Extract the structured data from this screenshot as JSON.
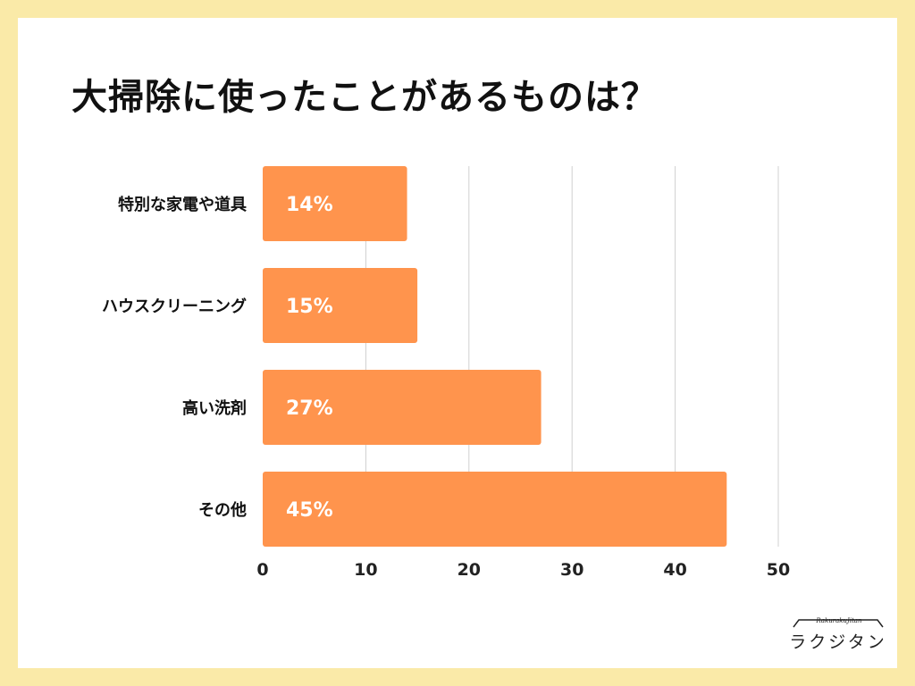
{
  "title": "大掃除に使ったことがあるものは？",
  "colors": {
    "bar": "#ff944d",
    "grid": "#d0d0d0",
    "background": "#faeaa8",
    "card": "#ffffff"
  },
  "logo": {
    "script": "RakurakuJitan",
    "kana": "ラクジタン"
  },
  "chart_data": {
    "type": "bar",
    "orientation": "horizontal",
    "categories": [
      "特別な家電や道具",
      "ハウスクリーニング",
      "高い洗剤",
      "その他"
    ],
    "values": [
      14,
      15,
      27,
      45
    ],
    "data_labels": [
      "14%",
      "15%",
      "27%",
      "45%"
    ],
    "xlim": [
      0,
      50
    ],
    "xticks": [
      0,
      10,
      20,
      30,
      40,
      50
    ],
    "xlabel": "",
    "ylabel": "",
    "grid": true,
    "legend": "none"
  }
}
